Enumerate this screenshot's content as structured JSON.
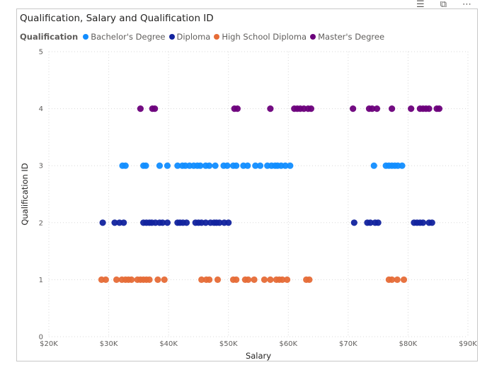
{
  "header_icons": [
    "filter-icon",
    "focus-mode-icon",
    "more-options-icon"
  ],
  "chart_data": {
    "type": "scatter",
    "title": "Qualification, Salary and Qualification ID",
    "xlabel": "Salary",
    "ylabel": "Qualification ID",
    "xlim": [
      20000,
      90000
    ],
    "ylim": [
      0,
      5
    ],
    "x_ticks": [
      20000,
      30000,
      40000,
      50000,
      60000,
      70000,
      80000,
      90000
    ],
    "x_tick_labels": [
      "$20K",
      "$30K",
      "$40K",
      "$50K",
      "$60K",
      "$70K",
      "$80K",
      "$90K"
    ],
    "y_ticks": [
      0,
      1,
      2,
      3,
      4,
      5
    ],
    "y_tick_labels": [
      "0",
      "1",
      "2",
      "3",
      "4",
      "5"
    ],
    "grid": true,
    "legend_title": "Qualification",
    "legend_position": "top-left",
    "series": [
      {
        "name": "Bachelor's Degree",
        "color": "#118DFF",
        "y": 3,
        "x": [
          32300,
          32800,
          35800,
          36200,
          38500,
          39800,
          41500,
          42300,
          42800,
          43500,
          44200,
          44800,
          45300,
          46200,
          46800,
          47800,
          49200,
          49800,
          50800,
          51300,
          52500,
          53200,
          54500,
          55300,
          56500,
          57200,
          57800,
          58200,
          58800,
          59500,
          60300,
          74300,
          76300,
          76800,
          77300,
          77800,
          78300,
          79000
        ]
      },
      {
        "name": "Diploma",
        "color": "#12239E",
        "y": 2,
        "x": [
          29000,
          31000,
          31800,
          32500,
          35800,
          36300,
          36800,
          37200,
          37800,
          38500,
          39000,
          39800,
          41500,
          41900,
          42400,
          43000,
          44500,
          45000,
          45500,
          46200,
          47000,
          47600,
          48000,
          48500,
          49300,
          50000,
          71000,
          73200,
          73700,
          74500,
          75000,
          81000,
          81500,
          82000,
          82500,
          83500,
          84000
        ]
      },
      {
        "name": "High School Diploma",
        "color": "#E66C37",
        "y": 1,
        "x": [
          28800,
          29500,
          31300,
          32200,
          32800,
          33300,
          33800,
          34800,
          35300,
          35800,
          36300,
          36800,
          38200,
          39300,
          45500,
          46300,
          46800,
          48200,
          50800,
          51300,
          52800,
          53300,
          54300,
          56000,
          57000,
          58000,
          58500,
          59000,
          59800,
          63000,
          63500,
          76800,
          77300,
          78200,
          79300
        ]
      },
      {
        "name": "Master's Degree",
        "color": "#6B007B",
        "y": 4,
        "x": [
          35300,
          37300,
          37700,
          51000,
          51500,
          57000,
          61000,
          61500,
          62000,
          62600,
          63300,
          63800,
          70800,
          73500,
          74000,
          74800,
          77300,
          80500,
          82000,
          82500,
          83000,
          83500,
          84800,
          85200
        ]
      }
    ]
  }
}
